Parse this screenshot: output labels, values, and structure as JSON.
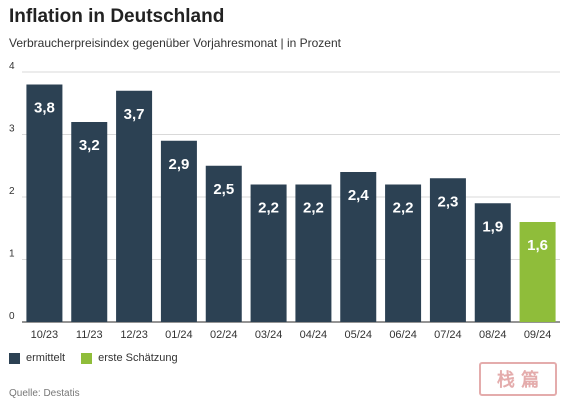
{
  "chart_data": {
    "type": "bar",
    "title": "Inflation in Deutschland",
    "subtitle": "Verbraucherpreisindex gegenüber Vorjahresmonat | in Prozent",
    "categories": [
      "10/23",
      "11/23",
      "12/23",
      "01/24",
      "02/24",
      "03/24",
      "04/24",
      "05/24",
      "06/24",
      "07/24",
      "08/24",
      "09/24"
    ],
    "values": [
      3.8,
      3.2,
      3.7,
      2.9,
      2.5,
      2.2,
      2.2,
      2.4,
      2.2,
      2.3,
      1.9,
      1.6
    ],
    "value_labels": [
      "3,8",
      "3,2",
      "3,7",
      "2,9",
      "2,5",
      "2,2",
      "2,2",
      "2,4",
      "2,2",
      "2,3",
      "1,9",
      "1,6"
    ],
    "bar_status": [
      "ermittelt",
      "ermittelt",
      "ermittelt",
      "ermittelt",
      "ermittelt",
      "ermittelt",
      "ermittelt",
      "ermittelt",
      "ermittelt",
      "ermittelt",
      "ermittelt",
      "erste Schätzung"
    ],
    "yticks": [
      0,
      1,
      2,
      3,
      4
    ],
    "ylim": [
      0,
      4
    ],
    "xlabel": "",
    "ylabel": "",
    "grid": true,
    "legend_placement": "bottom-left",
    "legend": [
      {
        "label": "ermittelt",
        "color": "#2c4153"
      },
      {
        "label": "erste Schätzung",
        "color": "#8fbd3a"
      }
    ]
  },
  "source": "Quelle: Destatis",
  "watermark": "栈 篇"
}
